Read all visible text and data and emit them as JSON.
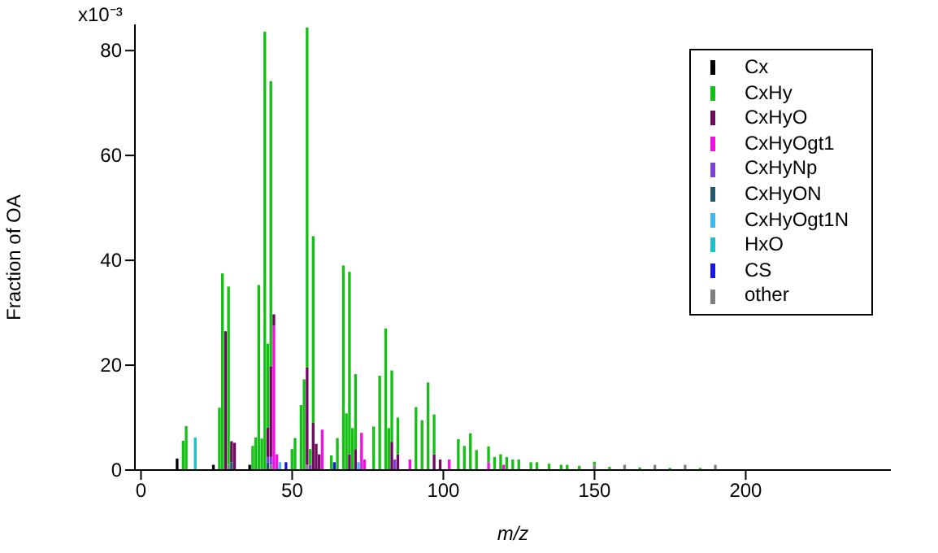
{
  "chart_data": {
    "type": "bar",
    "stacked": true,
    "xlabel": "m/z",
    "ylabel": "Fraction of OA",
    "xlim": [
      -2,
      248
    ],
    "xticks": [
      0,
      50,
      100,
      150,
      200
    ],
    "ylim": [
      0,
      85
    ],
    "yticks": [
      0,
      20,
      40,
      60,
      80
    ],
    "annotations": [
      "x10⁻³"
    ],
    "legend": "top right",
    "x": [
      12,
      14,
      15,
      18,
      24,
      26,
      27,
      28,
      29,
      30,
      31,
      36,
      37,
      38,
      39,
      40,
      41,
      42,
      43,
      44,
      45,
      46,
      48,
      50,
      51,
      53,
      54,
      55,
      56,
      57,
      58,
      59,
      60,
      63,
      64,
      65,
      67,
      68,
      69,
      70,
      71,
      72,
      73,
      74,
      77,
      79,
      81,
      82,
      83,
      84,
      85,
      89,
      91,
      93,
      95,
      97,
      99,
      102,
      105,
      107,
      109,
      111,
      115,
      117,
      119,
      120,
      121,
      123,
      125,
      129,
      131,
      135,
      139,
      141,
      145,
      150,
      155,
      160,
      165,
      170,
      175,
      180,
      185,
      190
    ],
    "series": [
      {
        "name": "other",
        "color": "#808080",
        "values": [
          null,
          null,
          null,
          null,
          null,
          null,
          null,
          null,
          1,
          null,
          null,
          null,
          null,
          null,
          null,
          null,
          null,
          null,
          1,
          null,
          null,
          null,
          null,
          null,
          null,
          null,
          null,
          1,
          null,
          null,
          null,
          null,
          null,
          null,
          null,
          null,
          null,
          null,
          null,
          null,
          null,
          null,
          null,
          null,
          null,
          null,
          null,
          null,
          null,
          null,
          null,
          null,
          null,
          null,
          null,
          null,
          null,
          null,
          null,
          null,
          null,
          null,
          null,
          null,
          null,
          null,
          null,
          null,
          null,
          null,
          null,
          null,
          null,
          null,
          null,
          1,
          null,
          1,
          null,
          1,
          null,
          1,
          null,
          1
        ]
      },
      {
        "name": "CS",
        "color": "#1818e0",
        "values": [
          null,
          null,
          null,
          null,
          null,
          null,
          null,
          null,
          null,
          null,
          null,
          null,
          null,
          null,
          null,
          null,
          null,
          null,
          null,
          null,
          null,
          null,
          1.5,
          null,
          null,
          null,
          null,
          null,
          null,
          null,
          null,
          null,
          null,
          null,
          1.5,
          null,
          null,
          null,
          null,
          null,
          null,
          null,
          null,
          null,
          null,
          null,
          null,
          null,
          null,
          null,
          null,
          null,
          null,
          null,
          null,
          null,
          null,
          null,
          null,
          null,
          null,
          null,
          null,
          null,
          null,
          null,
          null,
          null,
          null,
          null,
          null,
          null,
          null,
          null,
          null,
          null,
          null,
          null,
          null,
          null,
          null,
          null,
          null,
          null
        ]
      },
      {
        "name": "HxO",
        "color": "#20c0c8",
        "values": [
          null,
          null,
          null,
          6.2,
          null,
          null,
          null,
          null,
          null,
          null,
          null,
          null,
          null,
          null,
          null,
          null,
          null,
          null,
          null,
          null,
          null,
          null,
          null,
          null,
          null,
          null,
          null,
          null,
          null,
          null,
          null,
          null,
          null,
          null,
          null,
          null,
          null,
          null,
          null,
          null,
          null,
          null,
          null,
          null,
          null,
          null,
          null,
          null,
          null,
          null,
          null,
          null,
          null,
          null,
          null,
          null,
          null,
          null,
          null,
          null,
          null,
          null,
          null,
          null,
          null,
          null,
          null,
          null,
          null,
          null,
          null,
          null,
          null,
          null,
          null,
          null,
          null,
          null,
          null,
          null,
          null,
          null,
          null,
          null
        ]
      },
      {
        "name": "CxHyOgt1N",
        "color": "#40b8f0",
        "values": [
          null,
          null,
          null,
          null,
          null,
          null,
          null,
          null,
          null,
          null,
          null,
          null,
          null,
          null,
          null,
          null,
          null,
          null,
          null,
          null,
          null,
          1.5,
          null,
          null,
          null,
          null,
          null,
          null,
          null,
          null,
          null,
          null,
          null,
          null,
          null,
          null,
          null,
          null,
          null,
          null,
          null,
          1.5,
          null,
          null,
          null,
          null,
          null,
          null,
          null,
          null,
          null,
          null,
          null,
          null,
          null,
          null,
          null,
          null,
          null,
          null,
          null,
          null,
          null,
          null,
          null,
          null,
          null,
          null,
          null,
          null,
          null,
          null,
          null,
          null,
          null,
          null,
          null,
          null,
          null,
          null,
          null,
          null,
          null,
          null
        ]
      },
      {
        "name": "CxHyON",
        "color": "#205a70",
        "values": [
          null,
          null,
          null,
          null,
          null,
          null,
          null,
          null,
          null,
          1.5,
          null,
          null,
          null,
          null,
          null,
          null,
          null,
          1.5,
          null,
          null,
          null,
          null,
          null,
          null,
          null,
          null,
          null,
          null,
          null,
          null,
          null,
          null,
          null,
          null,
          null,
          null,
          null,
          null,
          null,
          null,
          null,
          null,
          null,
          null,
          null,
          null,
          null,
          null,
          null,
          null,
          null,
          null,
          null,
          null,
          null,
          null,
          null,
          null,
          null,
          null,
          null,
          null,
          null,
          null,
          null,
          null,
          null,
          null,
          null,
          null,
          null,
          null,
          null,
          null,
          null,
          null,
          null,
          null,
          null,
          null,
          null,
          null,
          null,
          null
        ]
      },
      {
        "name": "CxHyNp",
        "color": "#8040d8",
        "values": [
          null,
          null,
          null,
          null,
          null,
          null,
          null,
          null,
          null,
          null,
          null,
          null,
          null,
          null,
          null,
          null,
          null,
          1,
          1.5,
          null,
          null,
          null,
          null,
          null,
          null,
          null,
          null,
          null,
          1,
          null,
          null,
          null,
          null,
          null,
          null,
          null,
          null,
          null,
          null,
          null,
          null,
          null,
          null,
          null,
          null,
          null,
          null,
          null,
          null,
          2,
          null,
          null,
          null,
          null,
          null,
          null,
          null,
          null,
          null,
          null,
          null,
          null,
          null,
          null,
          null,
          null,
          null,
          null,
          null,
          null,
          null,
          null,
          null,
          null,
          null,
          null,
          null,
          null,
          null,
          null,
          null,
          null,
          null,
          null
        ]
      },
      {
        "name": "CxHyOgt1",
        "color": "#f010e0",
        "values": [
          null,
          null,
          null,
          null,
          null,
          null,
          null,
          null,
          null,
          null,
          null,
          null,
          null,
          null,
          null,
          null,
          null,
          null,
          null,
          27.5,
          3,
          null,
          null,
          null,
          null,
          null,
          null,
          null,
          null,
          null,
          null,
          null,
          7.7,
          null,
          null,
          null,
          null,
          null,
          null,
          null,
          null,
          null,
          7.1,
          2,
          null,
          null,
          null,
          null,
          null,
          null,
          null,
          2,
          null,
          null,
          null,
          null,
          null,
          2,
          null,
          null,
          null,
          null,
          1.5,
          null,
          null,
          1,
          null,
          null,
          null,
          null,
          null,
          null,
          null,
          null,
          null,
          null,
          null,
          null,
          null,
          null,
          null,
          null,
          null,
          null
        ]
      },
      {
        "name": "CxHyO",
        "color": "#6e0a5e",
        "values": [
          null,
          null,
          null,
          null,
          null,
          null,
          null,
          26.5,
          null,
          4,
          5.2,
          null,
          null,
          null,
          null,
          null,
          null,
          5.6,
          17.3,
          2.2,
          null,
          null,
          null,
          null,
          null,
          null,
          null,
          18.6,
          null,
          9,
          5,
          3,
          null,
          null,
          null,
          null,
          null,
          null,
          3,
          null,
          4,
          null,
          null,
          null,
          null,
          null,
          null,
          null,
          5.4,
          null,
          3,
          null,
          null,
          null,
          null,
          3,
          2,
          null,
          null,
          null,
          null,
          null,
          null,
          null,
          null,
          null,
          null,
          null,
          null,
          null,
          null,
          null,
          null,
          null,
          null,
          null,
          null,
          null,
          null,
          null,
          null,
          null,
          null,
          null
        ]
      },
      {
        "name": "CxHy",
        "color": "#14c014",
        "values": [
          null,
          5.6,
          8.4,
          null,
          null,
          11.9,
          37.5,
          null,
          34,
          null,
          null,
          null,
          4.6,
          6.2,
          35.3,
          6,
          83.6,
          16,
          54.4,
          null,
          null,
          null,
          null,
          4,
          6.1,
          12.4,
          17.3,
          64.8,
          3,
          35.6,
          null,
          null,
          null,
          2.8,
          null,
          6.1,
          39,
          10.8,
          34.8,
          8,
          14.3,
          null,
          null,
          null,
          8.3,
          18,
          27,
          8,
          13.6,
          null,
          7,
          null,
          12,
          9.5,
          16.7,
          7.6,
          null,
          null,
          5.9,
          4.6,
          7,
          3.8,
          3,
          2.5,
          3,
          null,
          2.5,
          2,
          2,
          1.5,
          1.5,
          1.2,
          1,
          1,
          0.8,
          0.6,
          0.6,
          null,
          0.5,
          null,
          0.4,
          null,
          0.4,
          null
        ]
      },
      {
        "name": "Cx",
        "color": "#000000",
        "values": [
          2.2,
          null,
          null,
          null,
          1,
          null,
          null,
          null,
          null,
          null,
          null,
          1,
          null,
          null,
          null,
          null,
          null,
          null,
          null,
          null,
          null,
          null,
          null,
          null,
          null,
          null,
          null,
          null,
          null,
          null,
          null,
          null,
          null,
          null,
          null,
          null,
          null,
          null,
          null,
          null,
          null,
          null,
          null,
          null,
          null,
          null,
          null,
          null,
          null,
          null,
          null,
          null,
          null,
          null,
          null,
          null,
          null,
          null,
          null,
          null,
          null,
          null,
          null,
          null,
          null,
          null,
          null,
          null,
          null,
          null,
          null,
          null,
          null,
          null,
          null,
          null,
          null,
          null,
          null,
          null,
          null,
          null,
          null,
          null
        ]
      }
    ]
  }
}
